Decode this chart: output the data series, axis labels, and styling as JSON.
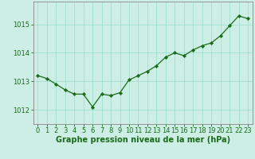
{
  "x": [
    0,
    1,
    2,
    3,
    4,
    5,
    6,
    7,
    8,
    9,
    10,
    11,
    12,
    13,
    14,
    15,
    16,
    17,
    18,
    19,
    20,
    21,
    22,
    23
  ],
  "y": [
    1013.2,
    1013.1,
    1012.9,
    1012.7,
    1012.55,
    1012.55,
    1012.1,
    1012.55,
    1012.5,
    1012.6,
    1013.05,
    1013.2,
    1013.35,
    1013.55,
    1013.85,
    1014.0,
    1013.9,
    1014.1,
    1014.25,
    1014.35,
    1014.6,
    1014.95,
    1015.3,
    1015.2
  ],
  "line_color": "#1a6b1a",
  "marker": "D",
  "marker_size": 2.2,
  "background_color": "#cceee4",
  "grid_color": "#99ddcc",
  "xlabel": "Graphe pression niveau de la mer (hPa)",
  "xlabel_fontsize": 7,
  "tick_fontsize": 6,
  "ylim": [
    1011.5,
    1015.8
  ],
  "yticks": [
    1012,
    1013,
    1014,
    1015
  ],
  "xticks": [
    0,
    1,
    2,
    3,
    4,
    5,
    6,
    7,
    8,
    9,
    10,
    11,
    12,
    13,
    14,
    15,
    16,
    17,
    18,
    19,
    20,
    21,
    22,
    23
  ],
  "spine_color": "#888888",
  "label_color": "#1a6b1a"
}
